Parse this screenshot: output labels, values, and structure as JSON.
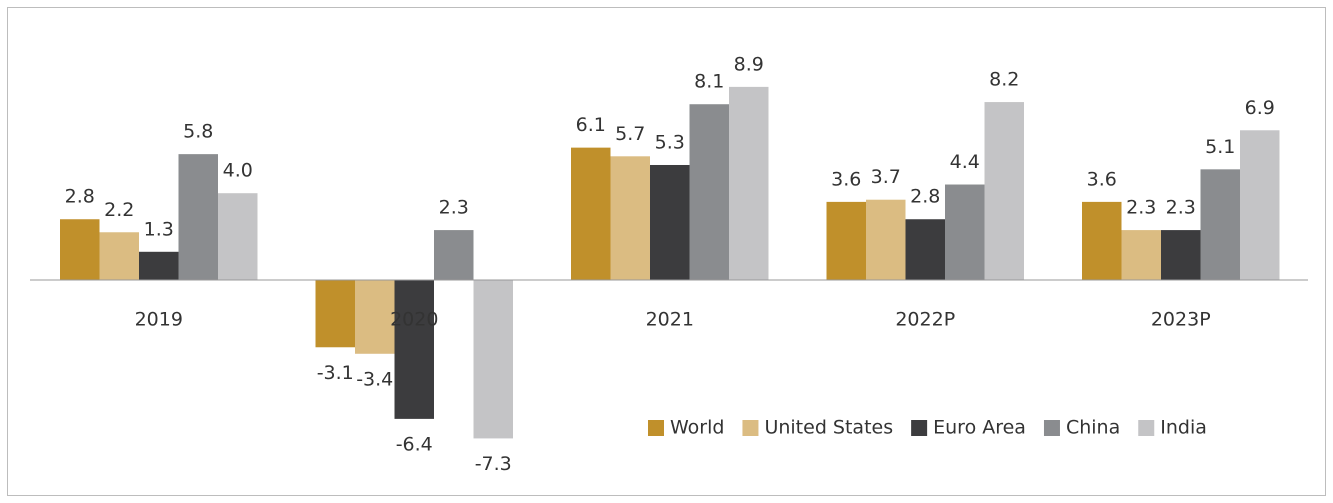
{
  "chart_data": {
    "type": "bar",
    "categories": [
      "2019",
      "2020",
      "2021",
      "2022P",
      "2023P"
    ],
    "series": [
      {
        "name": "World",
        "color": "#c0902b",
        "values": [
          2.8,
          -3.1,
          6.1,
          3.6,
          3.6
        ],
        "value_labels": [
          "2.8",
          "-3.1",
          "6.1",
          "3.6",
          "3.6"
        ]
      },
      {
        "name": "United States",
        "color": "#dbbc82",
        "values": [
          2.2,
          -3.4,
          5.7,
          3.7,
          2.3
        ],
        "value_labels": [
          "2.2",
          "-3.4",
          "5.7",
          "3.7",
          "2.3"
        ]
      },
      {
        "name": "Euro Area",
        "color": "#3c3c3e",
        "values": [
          1.3,
          -6.4,
          5.3,
          2.8,
          2.3
        ],
        "value_labels": [
          "1.3",
          "-6.4",
          "5.3",
          "2.8",
          "2.3"
        ]
      },
      {
        "name": "China",
        "color": "#8a8c8f",
        "values": [
          5.8,
          2.3,
          8.1,
          4.4,
          5.1
        ],
        "value_labels": [
          "5.8",
          "2.3",
          "8.1",
          "4.4",
          "5.1"
        ]
      },
      {
        "name": "India",
        "color": "#c4c4c6",
        "values": [
          4.0,
          -7.3,
          8.9,
          8.2,
          6.9
        ],
        "value_labels": [
          "4.0",
          "-7.3",
          "8.9",
          "8.2",
          "6.9"
        ]
      }
    ],
    "legend": "lower right"
  }
}
